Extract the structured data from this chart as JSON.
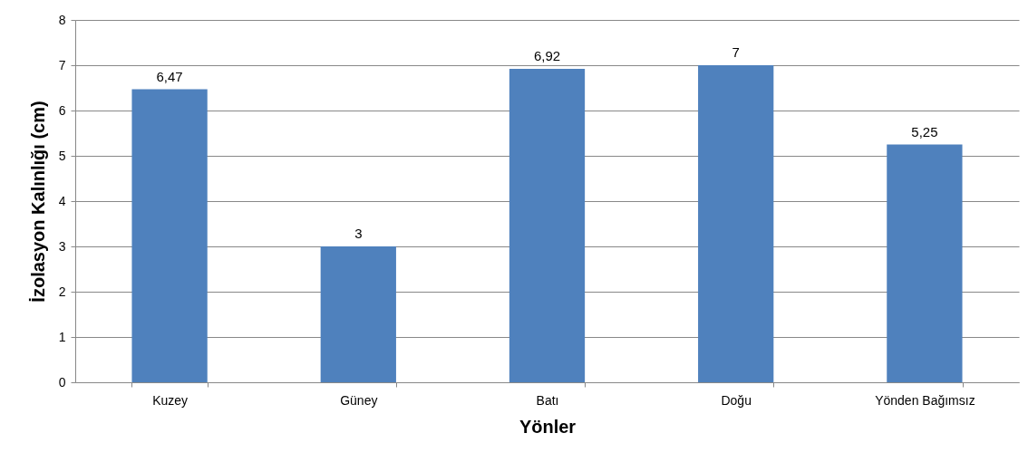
{
  "chart_data": {
    "type": "bar",
    "xlabel": "Yönler",
    "ylabel": "İzolasyon Kalınlığı (cm)",
    "categories": [
      "Kuzey",
      "Güney",
      "Batı",
      "Doğu",
      "Yönden Bağımsız"
    ],
    "values": [
      6.47,
      3,
      6.92,
      7,
      5.25
    ],
    "value_labels": [
      "6,47",
      "3",
      "6,92",
      "7",
      "5,25"
    ],
    "color": "#4f81bd",
    "ylim": [
      0,
      8
    ],
    "yticks": [
      0,
      1,
      2,
      3,
      4,
      5,
      6,
      7,
      8
    ],
    "grid": "y"
  }
}
